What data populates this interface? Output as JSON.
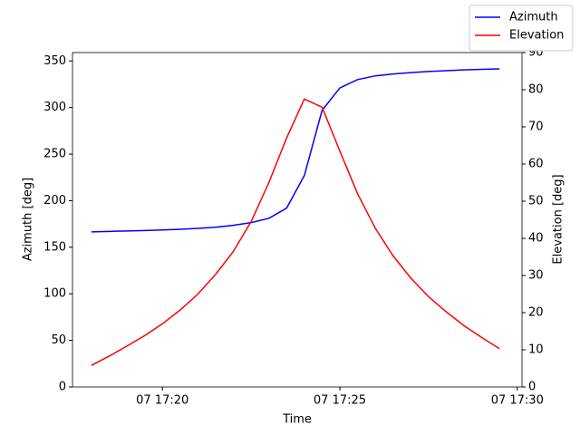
{
  "chart_data": {
    "type": "line",
    "x": [
      "07 17:18:00",
      "07 17:18:30",
      "07 17:19:00",
      "07 17:19:30",
      "07 17:20:00",
      "07 17:20:30",
      "07 17:21:00",
      "07 17:21:30",
      "07 17:22:00",
      "07 17:22:30",
      "07 17:23:00",
      "07 17:23:30",
      "07 17:24:00",
      "07 17:24:30",
      "07 17:25:00",
      "07 17:25:30",
      "07 17:26:00",
      "07 17:26:30",
      "07 17:27:00",
      "07 17:27:30",
      "07 17:28:00",
      "07 17:28:30",
      "07 17:29:00",
      "07 17:29:30"
    ],
    "series": [
      {
        "name": "Azimuth",
        "color": "#0000ff",
        "values": [
          166.5,
          167,
          167.5,
          168,
          168.5,
          169.3,
          170.3,
          171.5,
          173.5,
          176.5,
          181,
          192,
          227,
          297,
          321,
          330,
          334,
          336,
          337.5,
          338.7,
          339.6,
          340.4,
          341,
          341.5
        ]
      },
      {
        "name": "Elevation",
        "color": "#ff0000",
        "axis": "y2",
        "values": [
          5.8,
          8.3,
          11,
          13.8,
          17,
          20.7,
          25,
          30.3,
          36.5,
          44.5,
          55,
          67,
          77.5,
          75.3,
          63.5,
          52,
          42.7,
          35.3,
          29.3,
          24.3,
          20.2,
          16.5,
          13.3,
          10.3
        ]
      }
    ],
    "xlabel": "Time",
    "ylabel": "Azimuth [deg]",
    "y2label": "Elevation [deg]",
    "xlim": [
      "07 17:17:28",
      "07 17:30:08"
    ],
    "xticks": [
      {
        "value": "07 17:20:00",
        "label": "07 17:20"
      },
      {
        "value": "07 17:25:00",
        "label": "07 17:25"
      },
      {
        "value": "07 17:30:00",
        "label": "07 17:30"
      }
    ],
    "ylim": [
      0,
      359
    ],
    "yticks": [
      0,
      50,
      100,
      150,
      200,
      250,
      300,
      350
    ],
    "y2lim": [
      0,
      90
    ],
    "y2ticks": [
      0,
      10,
      20,
      30,
      40,
      50,
      60,
      70,
      80,
      90
    ],
    "legend": "upper right"
  }
}
